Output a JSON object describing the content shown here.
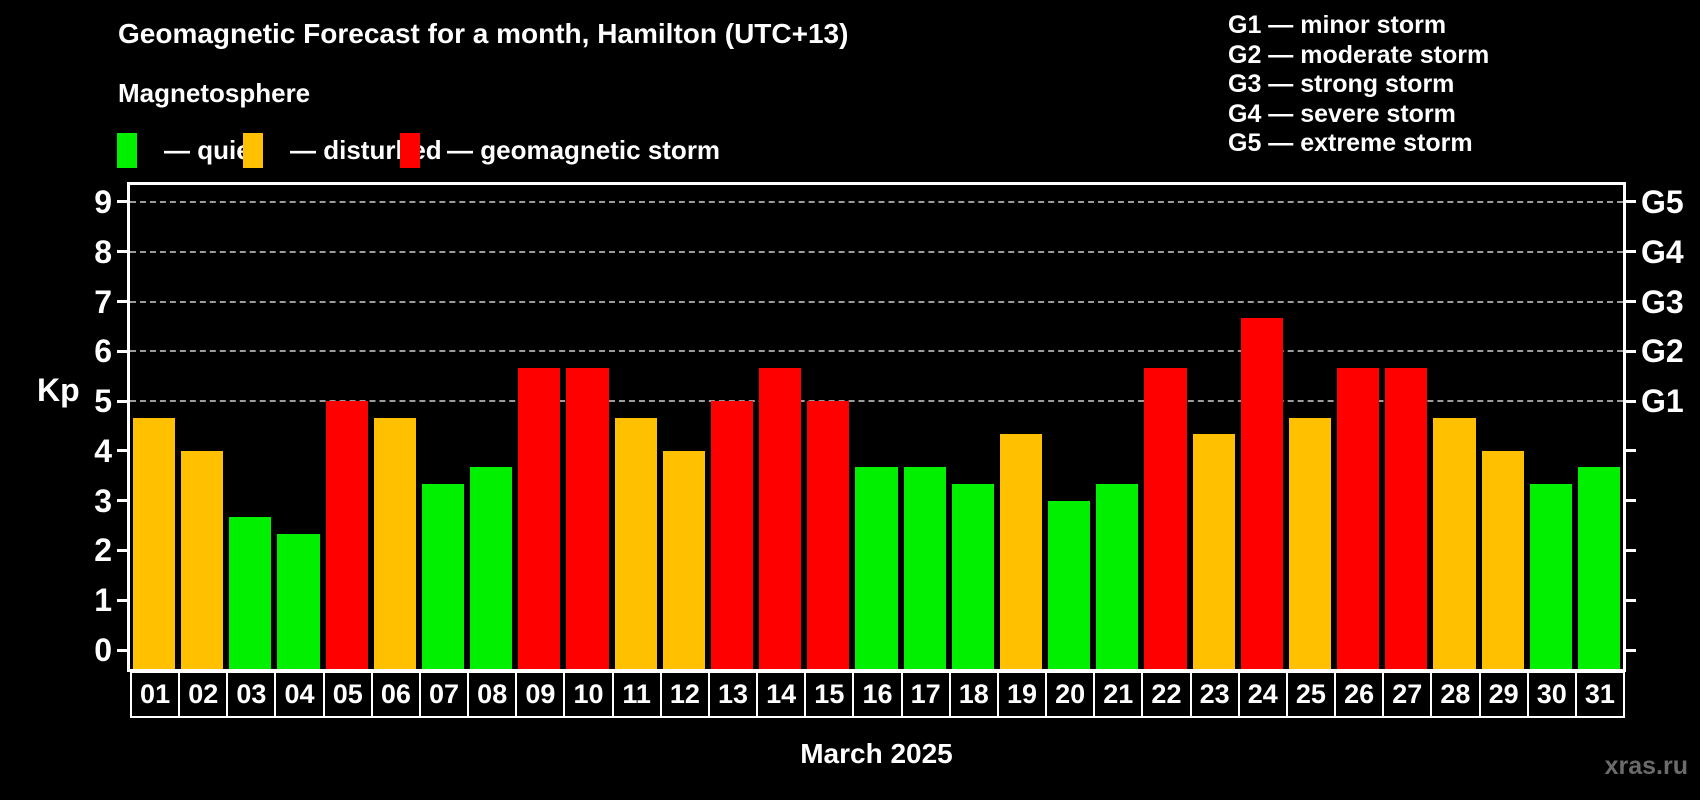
{
  "header": {
    "title": "Geomagnetic Forecast for a month, Hamilton (UTC+13)",
    "subtitle": "Magnetosphere"
  },
  "legend": {
    "items": [
      {
        "key": "quiet",
        "label": "— quiet",
        "color": "#00f000"
      },
      {
        "key": "disturbed",
        "label": "— disturbed",
        "color": "#ffc000"
      },
      {
        "key": "storm",
        "label": "— geomagnetic storm",
        "color": "#ff0000"
      }
    ]
  },
  "g_scale_legend": [
    "G1 — minor storm",
    "G2 — moderate storm",
    "G3 — strong storm",
    "G4 — severe storm",
    "G5 — extreme storm"
  ],
  "chart_data": {
    "type": "bar",
    "title": "Geomagnetic Forecast for a month, Hamilton (UTC+13)",
    "xlabel": "March 2025",
    "ylabel": "Kp",
    "ylim": [
      0,
      9
    ],
    "y_ticks": [
      0,
      1,
      2,
      3,
      4,
      5,
      6,
      7,
      8,
      9
    ],
    "gridlines_kp": [
      5,
      6,
      7,
      8,
      9
    ],
    "grid": "dashed horizontal lines at Kp 5-9 only",
    "legend_position": "top-left",
    "categories": [
      "01",
      "02",
      "03",
      "04",
      "05",
      "06",
      "07",
      "08",
      "09",
      "10",
      "11",
      "12",
      "13",
      "14",
      "15",
      "16",
      "17",
      "18",
      "19",
      "20",
      "21",
      "22",
      "23",
      "24",
      "25",
      "26",
      "27",
      "28",
      "29",
      "30",
      "31"
    ],
    "values": [
      4.67,
      4.0,
      2.67,
      2.33,
      5.0,
      4.67,
      3.33,
      3.67,
      5.67,
      5.67,
      4.67,
      4.0,
      5.0,
      5.67,
      5.0,
      3.67,
      3.67,
      3.33,
      4.33,
      3.0,
      3.33,
      5.67,
      4.33,
      6.67,
      4.67,
      5.67,
      5.67,
      4.67,
      4.0,
      3.33,
      3.67
    ],
    "statuses": [
      "disturbed",
      "disturbed",
      "quiet",
      "quiet",
      "storm",
      "disturbed",
      "quiet",
      "quiet",
      "storm",
      "storm",
      "disturbed",
      "disturbed",
      "storm",
      "storm",
      "storm",
      "quiet",
      "quiet",
      "quiet",
      "disturbed",
      "quiet",
      "quiet",
      "storm",
      "disturbed",
      "storm",
      "disturbed",
      "storm",
      "storm",
      "disturbed",
      "disturbed",
      "quiet",
      "quiet"
    ],
    "status_colors": {
      "quiet": "#00f000",
      "disturbed": "#ffc000",
      "storm": "#ff0000"
    },
    "right_axis": [
      {
        "kp": 5,
        "label": "G1"
      },
      {
        "kp": 6,
        "label": "G2"
      },
      {
        "kp": 7,
        "label": "G3"
      },
      {
        "kp": 8,
        "label": "G4"
      },
      {
        "kp": 9,
        "label": "G5"
      }
    ]
  },
  "footer": {
    "xlabel": "March 2025",
    "watermark": "xras.ru"
  }
}
